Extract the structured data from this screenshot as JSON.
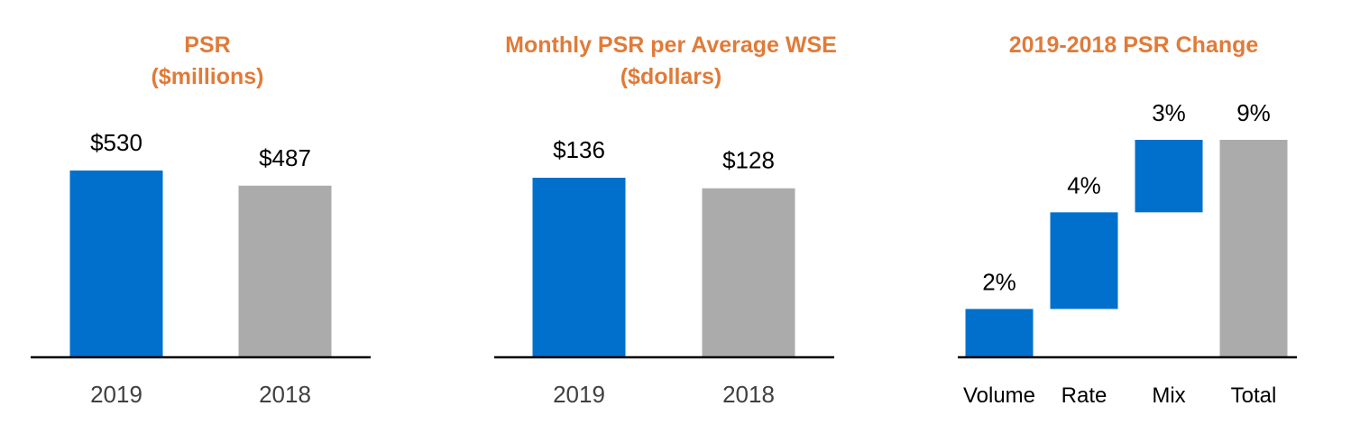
{
  "colors": {
    "title": "#E07B39",
    "primary": "#0070CC",
    "secondary": "#ABABAB",
    "axis": "#000000"
  },
  "chart_data": [
    {
      "type": "bar",
      "title": "PSR",
      "subtitle": "($millions)",
      "categories": [
        "2019",
        "2018"
      ],
      "values": [
        530,
        487
      ],
      "data_labels": [
        "$530",
        "$487"
      ],
      "colors": [
        "#0070CC",
        "#ABABAB"
      ]
    },
    {
      "type": "bar",
      "title": "Monthly PSR per Average WSE",
      "subtitle": "($dollars)",
      "categories": [
        "2019",
        "2018"
      ],
      "values": [
        136,
        128
      ],
      "data_labels": [
        "$136",
        "$128"
      ],
      "colors": [
        "#0070CC",
        "#ABABAB"
      ]
    },
    {
      "type": "bar",
      "subtype": "waterfall",
      "title": "2019-2018 PSR Change",
      "categories": [
        "Volume",
        "Rate",
        "Mix",
        "Total"
      ],
      "values": [
        2,
        4,
        3,
        9
      ],
      "data_labels": [
        "2%",
        "4%",
        "3%",
        "9%"
      ],
      "colors": [
        "#0070CC",
        "#0070CC",
        "#0070CC",
        "#ABABAB"
      ]
    }
  ]
}
